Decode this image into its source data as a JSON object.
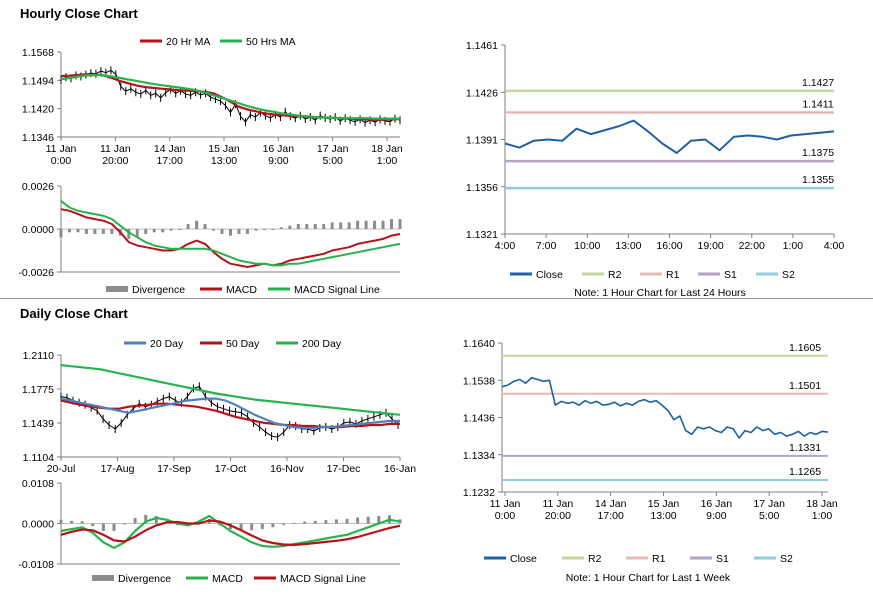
{
  "titles": {
    "hourly": "Hourly Close Chart",
    "daily": "Daily Close Chart"
  },
  "colors": {
    "red": "#b5121b",
    "green": "#27b34b",
    "blue": "#4f81bd",
    "navy": "#1f5fa4",
    "price": "#000000",
    "hist": "#8c8c8c",
    "r2": "#c3d69b",
    "r1": "#e6b9b8",
    "s1": "#b3a2c7",
    "s2": "#93cddd"
  },
  "chart_data": [
    {
      "id": "hourly_price",
      "type": "line",
      "legend": [
        "20 Hr MA",
        "50 Hrs MA"
      ],
      "x_ticks": [
        "11 Jan\n0:00",
        "11 Jan\n20:00",
        "14 Jan\n17:00",
        "15 Jan\n13:00",
        "16 Jan\n9:00",
        "17 Jan\n5:00",
        "18 Jan\n1:00"
      ],
      "y_ticks": [
        "1.1568",
        "1.1494",
        "1.1420",
        "1.1346"
      ],
      "ylim": [
        1.1346,
        1.1568
      ],
      "series": [
        {
          "name": "Close",
          "color": "price",
          "values": [
            1.1495,
            1.1502,
            1.1499,
            1.1507,
            1.1504,
            1.1509,
            1.1513,
            1.1511,
            1.1518,
            1.1514,
            1.152,
            1.151,
            1.1478,
            1.1466,
            1.1472,
            1.1463,
            1.1458,
            1.1468,
            1.1455,
            1.146,
            1.1448,
            1.1462,
            1.147,
            1.146,
            1.1467,
            1.1458,
            1.1455,
            1.1463,
            1.1456,
            1.146,
            1.145,
            1.1445,
            1.144,
            1.1428,
            1.141,
            1.1432,
            1.14,
            1.1385,
            1.1405,
            1.1398,
            1.141,
            1.1402,
            1.1396,
            1.1404,
            1.1398,
            1.1412,
            1.14,
            1.1395,
            1.1402,
            1.1393,
            1.1398,
            1.139,
            1.1402,
            1.1396,
            1.1393,
            1.1398,
            1.1388,
            1.1395,
            1.139,
            1.1386,
            1.1392,
            1.1384,
            1.139,
            1.1385,
            1.1392,
            1.1388,
            1.1386,
            1.1394,
            1.139
          ]
        },
        {
          "name": "20 Hr MA",
          "color": "red",
          "values": [
            1.1505,
            1.1506,
            1.1508,
            1.151,
            1.1509,
            1.1507,
            1.15,
            1.1492,
            1.1486,
            1.148,
            1.1476,
            1.1474,
            1.1472,
            1.147,
            1.1468,
            1.1467,
            1.1466,
            1.1464,
            1.146,
            1.145,
            1.1438,
            1.1425,
            1.1418,
            1.1413,
            1.1408,
            1.1405,
            1.1403,
            1.1401,
            1.14,
            1.1399,
            1.1398,
            1.1397,
            1.1396,
            1.1395,
            1.1394,
            1.1393,
            1.1392,
            1.1391,
            1.1391,
            1.1392,
            1.1393
          ]
        },
        {
          "name": "50 Hrs MA",
          "color": "green",
          "values": [
            1.1497,
            1.15,
            1.1504,
            1.1507,
            1.1508,
            1.1507,
            1.1504,
            1.15,
            1.1496,
            1.1492,
            1.1488,
            1.1484,
            1.1481,
            1.1478,
            1.1475,
            1.1472,
            1.1468,
            1.1462,
            1.1455,
            1.1448,
            1.1441,
            1.1434,
            1.1427,
            1.1421,
            1.1416,
            1.1412,
            1.1408,
            1.1405,
            1.1402,
            1.14,
            1.1398,
            1.1397,
            1.1396,
            1.1396,
            1.1395,
            1.1395,
            1.1395,
            1.1394,
            1.1394,
            1.1394,
            1.1394
          ]
        }
      ]
    },
    {
      "id": "hourly_macd",
      "type": "line",
      "legend": [
        "Divergence",
        "MACD",
        "MACD Signal Line"
      ],
      "y_ticks": [
        "0.0026",
        "0.0000",
        "-0.0026"
      ],
      "ylim": [
        -0.0026,
        0.0026
      ],
      "series": [
        {
          "name": "MACD",
          "color": "red",
          "values": [
            0.0012,
            0.0011,
            0.0009,
            0.0007,
            0.0006,
            0.0005,
            0.0003,
            -0.0002,
            -0.0008,
            -0.001,
            -0.0011,
            -0.0012,
            -0.0013,
            -0.0013,
            -0.0012,
            -0.0009,
            -0.0007,
            -0.0009,
            -0.0014,
            -0.0018,
            -0.0021,
            -0.0022,
            -0.0023,
            -0.0022,
            -0.0021,
            -0.0022,
            -0.0021,
            -0.0019,
            -0.0018,
            -0.0017,
            -0.0016,
            -0.0015,
            -0.0013,
            -0.0012,
            -0.0011,
            -0.0009,
            -0.0008,
            -0.0007,
            -0.0006,
            -0.0004,
            -0.0003
          ]
        },
        {
          "name": "MACD Signal Line",
          "color": "green",
          "values": [
            0.0017,
            0.0013,
            0.0011,
            0.001,
            0.0009,
            0.0008,
            0.0006,
            0.0002,
            -0.0002,
            -0.0005,
            -0.0008,
            -0.001,
            -0.0011,
            -0.0012,
            -0.0012,
            -0.0012,
            -0.0012,
            -0.0012,
            -0.0013,
            -0.0015,
            -0.0017,
            -0.0019,
            -0.002,
            -0.0021,
            -0.0021,
            -0.0022,
            -0.0022,
            -0.0021,
            -0.0021,
            -0.002,
            -0.0019,
            -0.0018,
            -0.0017,
            -0.0016,
            -0.0015,
            -0.0014,
            -0.0013,
            -0.0012,
            -0.0011,
            -0.001,
            -0.0009
          ]
        }
      ]
    },
    {
      "id": "hourly_24h",
      "type": "line",
      "x_ticks": [
        "4:00",
        "7:00",
        "10:00",
        "13:00",
        "16:00",
        "19:00",
        "22:00",
        "1:00",
        "4:00"
      ],
      "y_ticks": [
        "1.1461",
        "1.1426",
        "1.1391",
        "1.1356",
        "1.1321"
      ],
      "ylim": [
        1.1321,
        1.1461
      ],
      "levels": [
        {
          "name": "R2",
          "value": 1.1427,
          "label": "1.1427",
          "color": "r2"
        },
        {
          "name": "R1",
          "value": 1.1411,
          "label": "1.1411",
          "color": "r1"
        },
        {
          "name": "S1",
          "value": 1.1375,
          "label": "1.1375",
          "color": "s1"
        },
        {
          "name": "S2",
          "value": 1.1355,
          "label": "1.1355",
          "color": "s2"
        }
      ],
      "series": [
        {
          "name": "Close",
          "color": "navy",
          "values": [
            1.1388,
            1.1385,
            1.139,
            1.1391,
            1.139,
            1.1399,
            1.1395,
            1.1398,
            1.1401,
            1.1405,
            1.1397,
            1.1388,
            1.1381,
            1.139,
            1.1391,
            1.1383,
            1.1393,
            1.1394,
            1.1393,
            1.1391,
            1.1394,
            1.1395,
            1.1396,
            1.1397
          ]
        }
      ],
      "legend": [
        "Close",
        "R2",
        "R1",
        "S1",
        "S2"
      ],
      "note": "Note: 1 Hour Chart for Last 24 Hours"
    },
    {
      "id": "daily_price",
      "type": "line",
      "legend": [
        "20 Day",
        "50 Day",
        "200 Day"
      ],
      "x_ticks": [
        "20-Jul",
        "17-Aug",
        "17-Sep",
        "17-Oct",
        "16-Nov",
        "17-Dec",
        "16-Jan"
      ],
      "y_ticks": [
        "1.2110",
        "1.1775",
        "1.1439",
        "1.1104"
      ],
      "ylim": [
        1.1104,
        1.211
      ],
      "series": [
        {
          "name": "Close",
          "color": "price",
          "values": [
            1.17,
            1.169,
            1.166,
            1.164,
            1.162,
            1.159,
            1.156,
            1.148,
            1.142,
            1.138,
            1.144,
            1.152,
            1.158,
            1.163,
            1.16,
            1.162,
            1.165,
            1.168,
            1.17,
            1.166,
            1.164,
            1.17,
            1.178,
            1.18,
            1.17,
            1.164,
            1.16,
            1.158,
            1.156,
            1.155,
            1.154,
            1.15,
            1.144,
            1.14,
            1.135,
            1.131,
            1.13,
            1.135,
            1.142,
            1.141,
            1.138,
            1.138,
            1.136,
            1.139,
            1.14,
            1.138,
            1.14,
            1.144,
            1.145,
            1.143,
            1.146,
            1.148,
            1.15,
            1.152,
            1.154,
            1.148,
            1.142
          ]
        },
        {
          "name": "20 Day",
          "color": "blue",
          "values": [
            1.168,
            1.166,
            1.164,
            1.162,
            1.16,
            1.158,
            1.156,
            1.154,
            1.156,
            1.158,
            1.16,
            1.162,
            1.164,
            1.166,
            1.167,
            1.168,
            1.168,
            1.166,
            1.162,
            1.157,
            1.152,
            1.148,
            1.144,
            1.142,
            1.14,
            1.139,
            1.139,
            1.14,
            1.14,
            1.141,
            1.142,
            1.143,
            1.144,
            1.145,
            1.146,
            1.146
          ]
        },
        {
          "name": "50 Day",
          "color": "red",
          "values": [
            1.166,
            1.164,
            1.162,
            1.16,
            1.159,
            1.158,
            1.158,
            1.16,
            1.161,
            1.162,
            1.163,
            1.163,
            1.162,
            1.161,
            1.16,
            1.158,
            1.156,
            1.153,
            1.15,
            1.148,
            1.146,
            1.144,
            1.143,
            1.142,
            1.142,
            1.141,
            1.141,
            1.14,
            1.14,
            1.14,
            1.141,
            1.141,
            1.142,
            1.142,
            1.143,
            1.143
          ]
        },
        {
          "name": "200 Day",
          "color": "green",
          "values": [
            1.201,
            1.2,
            1.199,
            1.198,
            1.197,
            1.195,
            1.193,
            1.191,
            1.189,
            1.187,
            1.185,
            1.183,
            1.181,
            1.179,
            1.177,
            1.175,
            1.173,
            1.1715,
            1.17,
            1.1685,
            1.167,
            1.166,
            1.165,
            1.164,
            1.163,
            1.162,
            1.161,
            1.16,
            1.159,
            1.158,
            1.157,
            1.156,
            1.155,
            1.154,
            1.153,
            1.152
          ]
        }
      ]
    },
    {
      "id": "daily_macd",
      "type": "line",
      "legend": [
        "Divergence",
        "MACD",
        "MACD Signal Line"
      ],
      "y_ticks": [
        "0.0108",
        "0.0000",
        "-0.0108"
      ],
      "ylim": [
        -0.0108,
        0.0108
      ],
      "series": [
        {
          "name": "MACD",
          "color": "green",
          "values": [
            -0.002,
            -0.0015,
            -0.001,
            -0.0025,
            -0.005,
            -0.0065,
            -0.005,
            -0.002,
            0.0005,
            0.0015,
            0.001,
            0.0,
            -0.0005,
            0.0005,
            0.002,
            0.0,
            -0.002,
            -0.0035,
            -0.005,
            -0.006,
            -0.0062,
            -0.006,
            -0.0055,
            -0.005,
            -0.0045,
            -0.004,
            -0.0035,
            -0.003,
            -0.002,
            -0.001,
            0.0,
            0.001,
            0.0005
          ]
        },
        {
          "name": "MACD Signal Line",
          "color": "red",
          "values": [
            -0.003,
            -0.0022,
            -0.0016,
            -0.0018,
            -0.003,
            -0.0045,
            -0.0048,
            -0.0035,
            -0.0018,
            -0.0005,
            0.0003,
            0.0004,
            0.0,
            0.0,
            0.0008,
            0.0005,
            -0.0005,
            -0.0018,
            -0.0032,
            -0.0045,
            -0.0052,
            -0.0056,
            -0.0057,
            -0.0055,
            -0.0052,
            -0.0049,
            -0.0046,
            -0.0042,
            -0.0036,
            -0.0028,
            -0.002,
            -0.0012,
            -0.0006
          ]
        }
      ]
    },
    {
      "id": "weekly_hourly",
      "type": "line",
      "x_ticks": [
        "11 Jan\n0:00",
        "11 Jan\n20:00",
        "14 Jan\n17:00",
        "15 Jan\n13:00",
        "16 Jan\n9:00",
        "17 Jan\n5:00",
        "18 Jan\n1:00"
      ],
      "y_ticks": [
        "1.1640",
        "1.1538",
        "1.1436",
        "1.1334",
        "1.1232"
      ],
      "ylim": [
        1.1232,
        1.164
      ],
      "levels": [
        {
          "name": "R2",
          "value": 1.1605,
          "label": "1.1605",
          "color": "r2"
        },
        {
          "name": "R1",
          "value": 1.1501,
          "label": "1.1501",
          "color": "r1"
        },
        {
          "name": "S1",
          "value": 1.1331,
          "label": "1.1331",
          "color": "s1"
        },
        {
          "name": "S2",
          "value": 1.1265,
          "label": "1.1265",
          "color": "s2"
        }
      ],
      "series": [
        {
          "name": "Close",
          "color": "navy",
          "values": [
            1.152,
            1.1525,
            1.1535,
            1.154,
            1.153,
            1.1545,
            1.154,
            1.1535,
            1.1538,
            1.147,
            1.148,
            1.1475,
            1.1478,
            1.147,
            1.1482,
            1.1475,
            1.148,
            1.147,
            1.1472,
            1.1478,
            1.1468,
            1.1475,
            1.147,
            1.148,
            1.1485,
            1.1478,
            1.1482,
            1.147,
            1.1455,
            1.143,
            1.144,
            1.14,
            1.139,
            1.141,
            1.1405,
            1.141,
            1.14,
            1.1395,
            1.141,
            1.1405,
            1.138,
            1.14,
            1.1395,
            1.141,
            1.14,
            1.1405,
            1.139,
            1.1395,
            1.1385,
            1.139,
            1.1398,
            1.1385,
            1.1395,
            1.139,
            1.1398,
            1.1396
          ]
        }
      ],
      "legend": [
        "Close",
        "R2",
        "R1",
        "S1",
        "S2"
      ],
      "note": "Note: 1 Hour Chart for Last 1 Week"
    }
  ]
}
